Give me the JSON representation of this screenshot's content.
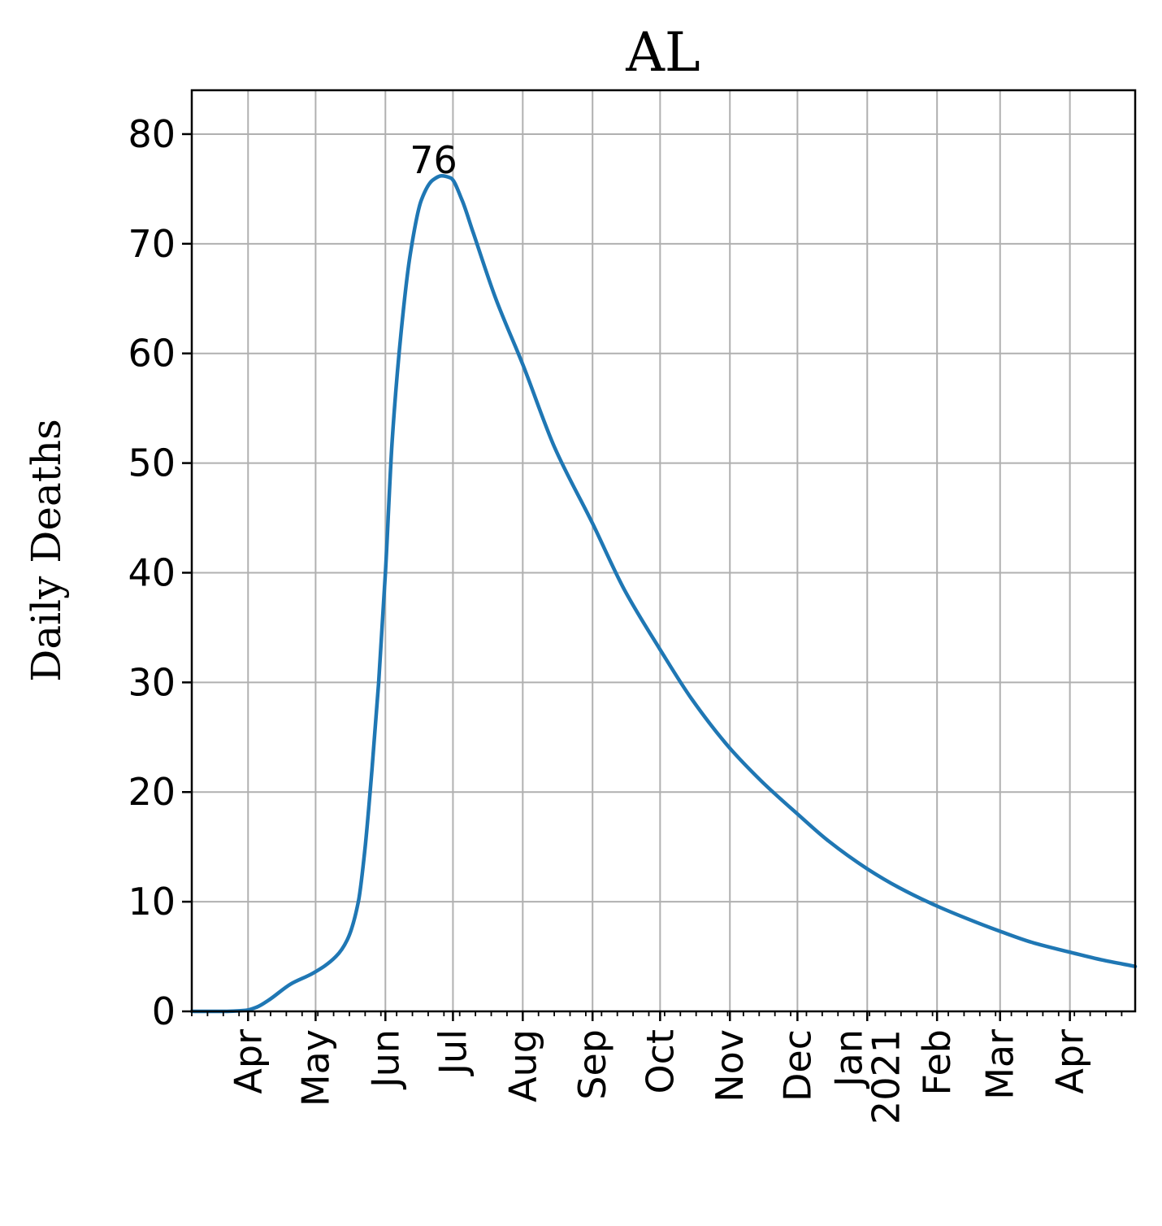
{
  "chart_data": {
    "type": "line",
    "title": "AL",
    "xlabel": "",
    "ylabel": "Daily Deaths",
    "xlim": [
      "2020-03-07",
      "2021-04-30"
    ],
    "ylim": [
      0,
      84
    ],
    "grid": true,
    "yticks": [
      0,
      10,
      20,
      30,
      40,
      50,
      60,
      70,
      80
    ],
    "xticks": [
      {
        "date": "2020-04-01",
        "label": "Apr"
      },
      {
        "date": "2020-05-01",
        "label": "May"
      },
      {
        "date": "2020-06-01",
        "label": "Jun"
      },
      {
        "date": "2020-07-01",
        "label": "Jul"
      },
      {
        "date": "2020-08-01",
        "label": "Aug"
      },
      {
        "date": "2020-09-01",
        "label": "Sep"
      },
      {
        "date": "2020-10-01",
        "label": "Oct"
      },
      {
        "date": "2020-11-01",
        "label": "Nov"
      },
      {
        "date": "2020-12-01",
        "label": "Dec"
      },
      {
        "date": "2021-01-01",
        "label": "Jan\n2021"
      },
      {
        "date": "2021-02-01",
        "label": "Feb"
      },
      {
        "date": "2021-03-01",
        "label": "Mar"
      },
      {
        "date": "2021-04-01",
        "label": "Apr"
      }
    ],
    "series": [
      {
        "color": "#1f77b4",
        "points": [
          [
            "2020-03-07",
            0
          ],
          [
            "2020-03-20",
            0
          ],
          [
            "2020-03-31",
            0.1
          ],
          [
            "2020-04-05",
            0.4
          ],
          [
            "2020-04-10",
            1
          ],
          [
            "2020-04-20",
            2.5
          ],
          [
            "2020-04-30",
            3.5
          ],
          [
            "2020-05-10",
            5
          ],
          [
            "2020-05-15",
            6.5
          ],
          [
            "2020-05-20",
            10
          ],
          [
            "2020-05-23",
            15
          ],
          [
            "2020-05-26",
            22
          ],
          [
            "2020-05-29",
            30
          ],
          [
            "2020-06-01",
            40
          ],
          [
            "2020-06-04",
            52
          ],
          [
            "2020-06-08",
            62
          ],
          [
            "2020-06-12",
            69
          ],
          [
            "2020-06-17",
            74
          ],
          [
            "2020-06-22",
            75.8
          ],
          [
            "2020-06-26",
            76.2
          ],
          [
            "2020-06-30",
            76
          ],
          [
            "2020-07-05",
            74
          ],
          [
            "2020-07-10",
            71
          ],
          [
            "2020-07-20",
            65
          ],
          [
            "2020-08-01",
            59
          ],
          [
            "2020-08-15",
            51.5
          ],
          [
            "2020-09-01",
            44.5
          ],
          [
            "2020-09-15",
            38.5
          ],
          [
            "2020-10-01",
            33
          ],
          [
            "2020-10-15",
            28.5
          ],
          [
            "2020-11-01",
            24
          ],
          [
            "2020-11-15",
            21
          ],
          [
            "2020-12-01",
            18
          ],
          [
            "2020-12-15",
            15.5
          ],
          [
            "2021-01-01",
            13
          ],
          [
            "2021-01-15",
            11.3
          ],
          [
            "2021-02-01",
            9.6
          ],
          [
            "2021-02-15",
            8.4
          ],
          [
            "2021-03-01",
            7.3
          ],
          [
            "2021-03-15",
            6.3
          ],
          [
            "2021-04-01",
            5.4
          ],
          [
            "2021-04-15",
            4.7
          ],
          [
            "2021-04-30",
            4.1
          ]
        ]
      }
    ],
    "annotations": [
      {
        "date": "2020-06-26",
        "value": 76,
        "text": "76"
      }
    ]
  }
}
